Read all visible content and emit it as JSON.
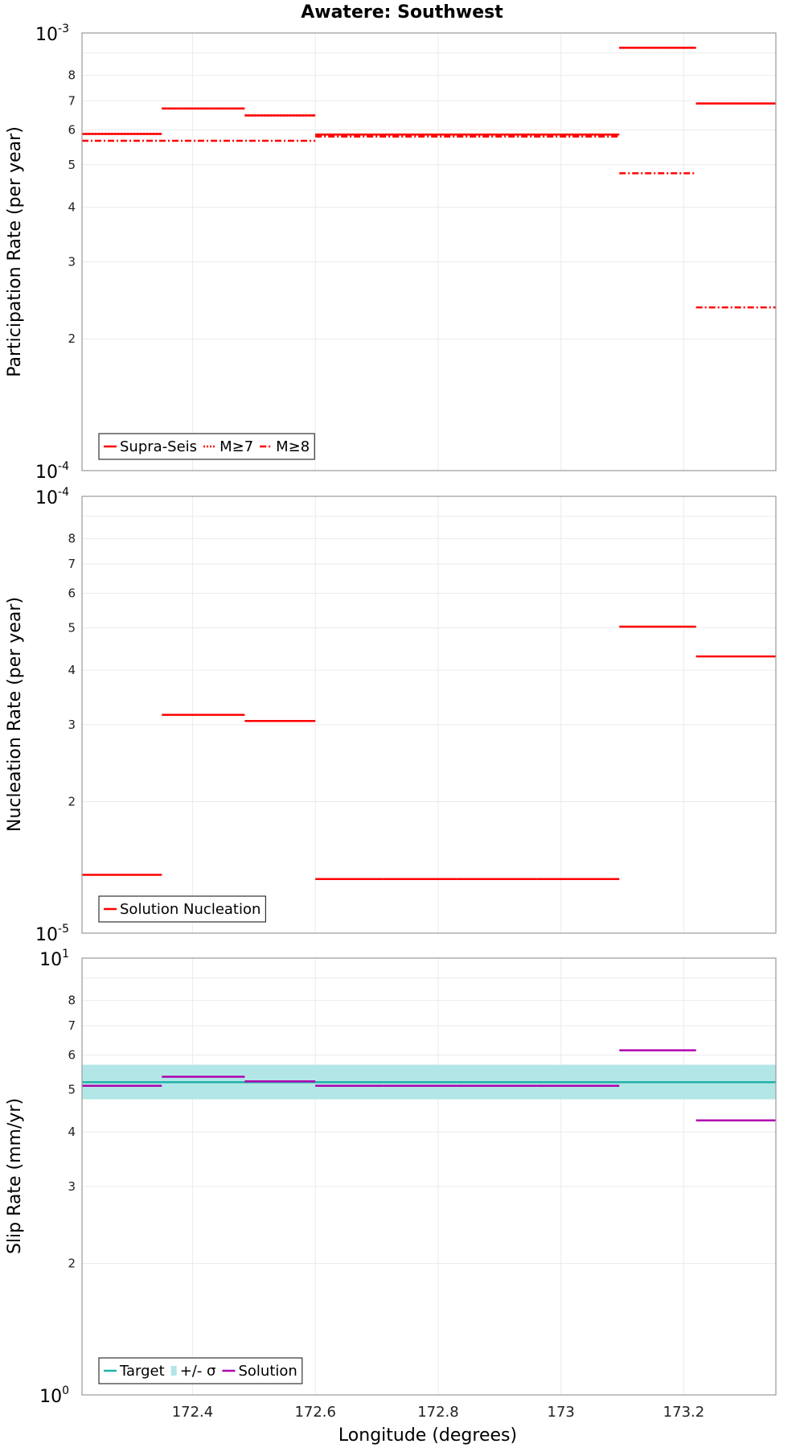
{
  "figure_title": "Awatere: Southwest",
  "xlabel": "Longitude (degrees)",
  "x_tick_labels": [
    "172.4",
    "172.6",
    "172.8",
    "173",
    "173.2"
  ],
  "chart_data": [
    {
      "type": "line",
      "title": "Awatere: Southwest",
      "ylabel": "Participation Rate (per year)",
      "xlabel": "",
      "yscale": "log",
      "xlim": [
        172.22,
        173.35
      ],
      "ylim": [
        0.0001,
        0.001
      ],
      "decade_labels": [
        {
          "base": "10",
          "exp": "-3",
          "value": 0.001
        },
        {
          "base": "10",
          "exp": "-4",
          "value": 0.0001
        }
      ],
      "y_tick_labels": [
        {
          "label": "8",
          "value": 0.0008
        },
        {
          "label": "7",
          "value": 0.0007
        },
        {
          "label": "6",
          "value": 0.0006
        },
        {
          "label": "5",
          "value": 0.0005
        },
        {
          "label": "4",
          "value": 0.0004
        },
        {
          "label": "3",
          "value": 0.0003
        },
        {
          "label": "2",
          "value": 0.0002
        }
      ],
      "legend": {
        "position": "bottom-left",
        "entries": [
          {
            "label": "Supra-Seis",
            "color": "#ff0000",
            "dash": "solid"
          },
          {
            "label": "M≥7",
            "color": "#ff0000",
            "dash": "dotted"
          },
          {
            "label": "M≥8",
            "color": "#ff0000",
            "dash": "dashdot"
          }
        ]
      },
      "series": [
        {
          "name": "Supra-Seis",
          "color": "#ff0000",
          "dash": "solid",
          "segments": [
            {
              "x0": 172.22,
              "x1": 172.35,
              "y": 0.000588
            },
            {
              "x0": 172.35,
              "x1": 172.485,
              "y": 0.000672
            },
            {
              "x0": 172.485,
              "x1": 172.6,
              "y": 0.000648
            },
            {
              "x0": 172.6,
              "x1": 172.71,
              "y": 0.000586
            },
            {
              "x0": 172.71,
              "x1": 172.83,
              "y": 0.000586
            },
            {
              "x0": 172.83,
              "x1": 172.96,
              "y": 0.000586
            },
            {
              "x0": 172.96,
              "x1": 173.095,
              "y": 0.000586
            },
            {
              "x0": 173.095,
              "x1": 173.22,
              "y": 0.000925
            },
            {
              "x0": 173.22,
              "x1": 173.35,
              "y": 0.00069
            }
          ]
        },
        {
          "name": "M≥7",
          "color": "#ff0000",
          "dash": "dotted",
          "segments": [
            {
              "x0": 172.22,
              "x1": 172.35,
              "y": 0.000588
            },
            {
              "x0": 172.35,
              "x1": 172.485,
              "y": 0.000672
            },
            {
              "x0": 172.485,
              "x1": 172.6,
              "y": 0.000648
            },
            {
              "x0": 172.6,
              "x1": 172.71,
              "y": 0.000586
            },
            {
              "x0": 172.71,
              "x1": 172.83,
              "y": 0.000586
            },
            {
              "x0": 172.83,
              "x1": 172.96,
              "y": 0.000586
            },
            {
              "x0": 172.96,
              "x1": 173.095,
              "y": 0.000586
            },
            {
              "x0": 173.095,
              "x1": 173.22,
              "y": 0.000925
            },
            {
              "x0": 173.22,
              "x1": 173.35,
              "y": 0.00069
            }
          ]
        },
        {
          "name": "M≥8",
          "color": "#ff0000",
          "dash": "dashdot",
          "segments": [
            {
              "x0": 172.22,
              "x1": 172.6,
              "y": 0.000567
            },
            {
              "x0": 172.6,
              "x1": 173.095,
              "y": 0.00058
            },
            {
              "x0": 173.095,
              "x1": 173.22,
              "y": 0.000478
            },
            {
              "x0": 173.22,
              "x1": 173.35,
              "y": 0.000236
            }
          ]
        }
      ]
    },
    {
      "type": "line",
      "title": "",
      "ylabel": "Nucleation Rate (per year)",
      "xlabel": "",
      "yscale": "log",
      "xlim": [
        172.22,
        173.35
      ],
      "ylim": [
        1e-05,
        0.0001
      ],
      "decade_labels": [
        {
          "base": "10",
          "exp": "-4",
          "value": 0.0001
        },
        {
          "base": "10",
          "exp": "-5",
          "value": 1e-05
        }
      ],
      "y_tick_labels": [
        {
          "label": "8",
          "value": 8e-05
        },
        {
          "label": "7",
          "value": 7e-05
        },
        {
          "label": "6",
          "value": 6e-05
        },
        {
          "label": "5",
          "value": 5e-05
        },
        {
          "label": "4",
          "value": 4e-05
        },
        {
          "label": "3",
          "value": 3e-05
        },
        {
          "label": "2",
          "value": 2e-05
        }
      ],
      "legend": {
        "position": "bottom-left",
        "entries": [
          {
            "label": "Solution Nucleation",
            "color": "#ff0000",
            "dash": "solid"
          }
        ]
      },
      "series": [
        {
          "name": "Solution Nucleation",
          "color": "#ff0000",
          "dash": "solid",
          "segments": [
            {
              "x0": 172.22,
              "x1": 172.35,
              "y": 1.36e-05
            },
            {
              "x0": 172.35,
              "x1": 172.485,
              "y": 3.16e-05
            },
            {
              "x0": 172.485,
              "x1": 172.6,
              "y": 3.06e-05
            },
            {
              "x0": 172.6,
              "x1": 172.71,
              "y": 1.33e-05
            },
            {
              "x0": 172.71,
              "x1": 172.83,
              "y": 1.33e-05
            },
            {
              "x0": 172.83,
              "x1": 172.96,
              "y": 1.33e-05
            },
            {
              "x0": 172.96,
              "x1": 173.095,
              "y": 1.33e-05
            },
            {
              "x0": 173.095,
              "x1": 173.22,
              "y": 5.03e-05
            },
            {
              "x0": 173.22,
              "x1": 173.35,
              "y": 4.3e-05
            }
          ]
        }
      ]
    },
    {
      "type": "line",
      "title": "",
      "ylabel": "Slip Rate (mm/yr)",
      "xlabel": "Longitude (degrees)",
      "yscale": "log",
      "xlim": [
        172.22,
        173.35
      ],
      "ylim": [
        1,
        10
      ],
      "decade_labels": [
        {
          "base": "10",
          "exp": "1",
          "value": 10
        },
        {
          "base": "10",
          "exp": "0",
          "value": 1
        }
      ],
      "y_tick_labels": [
        {
          "label": "8",
          "value": 8
        },
        {
          "label": "7",
          "value": 7
        },
        {
          "label": "6",
          "value": 6
        },
        {
          "label": "5",
          "value": 5
        },
        {
          "label": "4",
          "value": 4
        },
        {
          "label": "3",
          "value": 3
        },
        {
          "label": "2",
          "value": 2
        }
      ],
      "legend": {
        "position": "bottom-left",
        "entries": [
          {
            "label": "Target",
            "color": "#20b2aa",
            "dash": "solid"
          },
          {
            "label": "+/- σ",
            "color": "#b3e6e6",
            "dash": "band"
          },
          {
            "label": "Solution",
            "color": "#b000b0",
            "dash": "solid"
          }
        ]
      },
      "band": {
        "name": "+/- σ",
        "color": "#b3e6e6",
        "x0": 172.22,
        "x1": 173.35,
        "low": 4.75,
        "high": 5.7
      },
      "series": [
        {
          "name": "Target",
          "color": "#20b2aa",
          "dash": "solid",
          "segments": [
            {
              "x0": 172.22,
              "x1": 173.35,
              "y": 5.2
            }
          ]
        },
        {
          "name": "Solution",
          "color": "#b000b0",
          "dash": "solid",
          "segments": [
            {
              "x0": 172.22,
              "x1": 172.35,
              "y": 5.1
            },
            {
              "x0": 172.35,
              "x1": 172.485,
              "y": 5.35
            },
            {
              "x0": 172.485,
              "x1": 172.6,
              "y": 5.22
            },
            {
              "x0": 172.6,
              "x1": 172.71,
              "y": 5.1
            },
            {
              "x0": 172.71,
              "x1": 172.83,
              "y": 5.1
            },
            {
              "x0": 172.83,
              "x1": 172.96,
              "y": 5.1
            },
            {
              "x0": 172.96,
              "x1": 173.095,
              "y": 5.1
            },
            {
              "x0": 173.095,
              "x1": 173.22,
              "y": 6.15
            },
            {
              "x0": 173.22,
              "x1": 173.35,
              "y": 4.25
            }
          ]
        }
      ]
    }
  ]
}
